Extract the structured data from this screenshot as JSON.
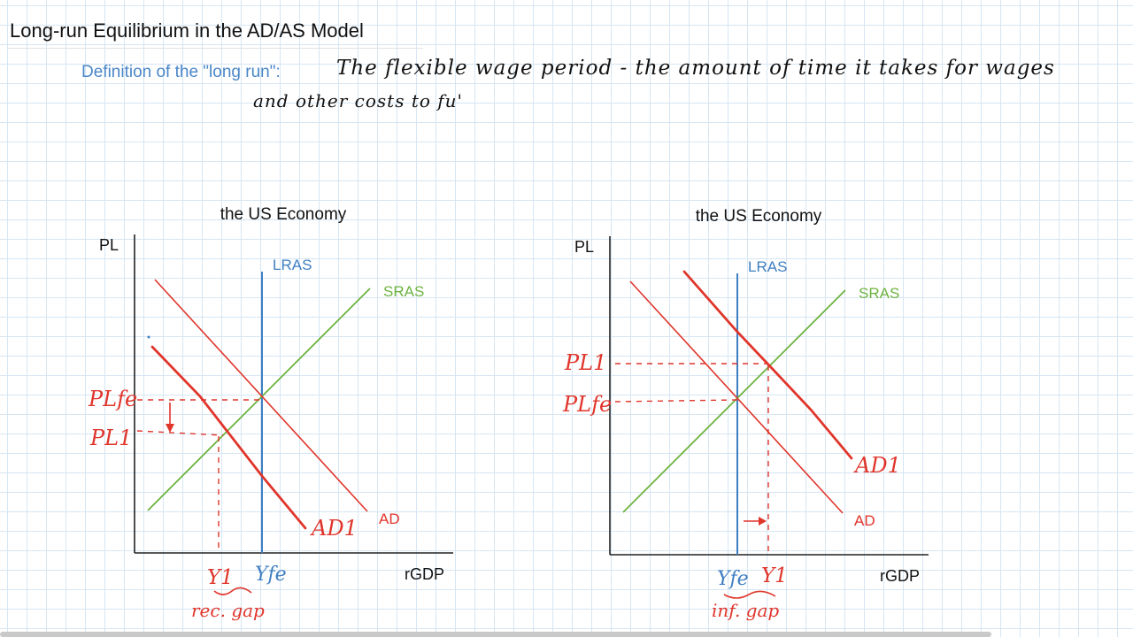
{
  "page": {
    "title": "Long-run Equilibrium in the AD/AS Model",
    "definition_label": "Definition of the \"long run\":",
    "handwriting_line1": "The flexible wage period - the amount of time it takes for wages",
    "handwriting_line2": "and other costs to fu'"
  },
  "graphs": [
    {
      "title": "the US Economy",
      "y_axis_label": "PL",
      "x_axis_label": "rGDP",
      "curves": {
        "lras": "LRAS",
        "sras": "SRAS",
        "ad": "AD",
        "ad1": "AD1"
      },
      "price_labels": [
        "PLfe",
        "PL1"
      ],
      "output_labels": [
        "Y1",
        "Yfe"
      ],
      "gap_note": "rec. gap"
    },
    {
      "title": "the US Economy",
      "y_axis_label": "PL",
      "x_axis_label": "rGDP",
      "curves": {
        "lras": "LRAS",
        "sras": "SRAS",
        "ad": "AD",
        "ad1": "AD1"
      },
      "price_labels": [
        "PL1",
        "PLfe"
      ],
      "output_labels": [
        "Yfe",
        "Y1"
      ],
      "gap_note": "inf. gap"
    }
  ],
  "colors": {
    "lras": "#3f7fc1",
    "sras": "#6cb33f",
    "ad": "#e0352b",
    "handwriting_red": "#e0352b",
    "handwriting_blue": "#3f7fc1",
    "label_blue": "#4a86c8"
  }
}
